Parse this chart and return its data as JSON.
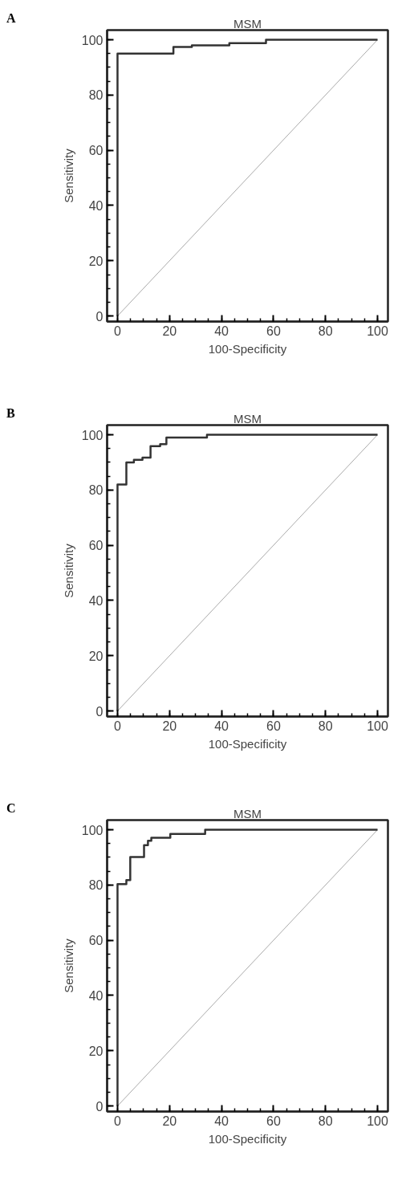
{
  "chart_data": [
    {
      "type": "line",
      "title": "MSM",
      "xlabel": "100-Specificity",
      "ylabel": "Sensitivity",
      "annotations": [
        "A"
      ],
      "xlim": [
        -4,
        104
      ],
      "ylim": [
        -2,
        103.5
      ],
      "xticks": [
        0,
        20,
        40,
        60,
        80,
        100
      ],
      "yticks": [
        0,
        20,
        40,
        60,
        80,
        100
      ],
      "series": [
        {
          "color": "#333333",
          "x": [
            0,
            0,
            21.5,
            21.5,
            28.6,
            28.6,
            43,
            43,
            57.1,
            57.1,
            100
          ],
          "values": [
            0,
            95,
            95,
            97.4,
            97.4,
            98,
            98,
            98.8,
            98.8,
            100,
            100
          ]
        },
        {
          "color": "#aaaaaa",
          "x": [
            0,
            100
          ],
          "values": [
            0,
            100
          ]
        }
      ]
    },
    {
      "type": "line",
      "title": "MSM",
      "xlabel": "100-Specificity",
      "ylabel": "Sensitivity",
      "annotations": [
        "B"
      ],
      "xlim": [
        -4,
        104
      ],
      "ylim": [
        -2,
        103.5
      ],
      "xticks": [
        0,
        20,
        40,
        60,
        80,
        100
      ],
      "yticks": [
        0,
        20,
        40,
        60,
        80,
        100
      ],
      "series": [
        {
          "color": "#333333",
          "x": [
            0,
            0,
            3.4,
            3.4,
            6.3,
            6.3,
            9.6,
            9.6,
            12.7,
            12.7,
            16.4,
            16.4,
            18.8,
            18.8,
            34.4,
            34.4,
            100
          ],
          "values": [
            0,
            82,
            82,
            90,
            90,
            90.9,
            90.9,
            91.7,
            91.7,
            95.9,
            95.9,
            96.6,
            96.6,
            99,
            99,
            100,
            100
          ]
        },
        {
          "color": "#aaaaaa",
          "x": [
            0,
            100
          ],
          "values": [
            0,
            100
          ]
        }
      ]
    },
    {
      "type": "line",
      "title": "MSM",
      "xlabel": "100-Specificity",
      "ylabel": "Sensitivity",
      "annotations": [
        "C"
      ],
      "xlim": [
        -4,
        104
      ],
      "ylim": [
        -2,
        103.5
      ],
      "xticks": [
        0,
        20,
        40,
        60,
        80,
        100
      ],
      "yticks": [
        0,
        20,
        40,
        60,
        80,
        100
      ],
      "series": [
        {
          "color": "#333333",
          "x": [
            0,
            0,
            3.4,
            3.4,
            4.9,
            4.9,
            10.2,
            10.2,
            11.7,
            11.7,
            13,
            13,
            20.3,
            20.3,
            33.7,
            33.7,
            100
          ],
          "values": [
            0,
            80.3,
            80.3,
            81.8,
            81.8,
            90.1,
            90.1,
            94.4,
            94.4,
            96,
            96,
            97.1,
            97.1,
            98.5,
            98.5,
            100,
            100
          ]
        },
        {
          "color": "#aaaaaa",
          "x": [
            0,
            100
          ],
          "values": [
            0,
            100
          ]
        }
      ]
    }
  ]
}
